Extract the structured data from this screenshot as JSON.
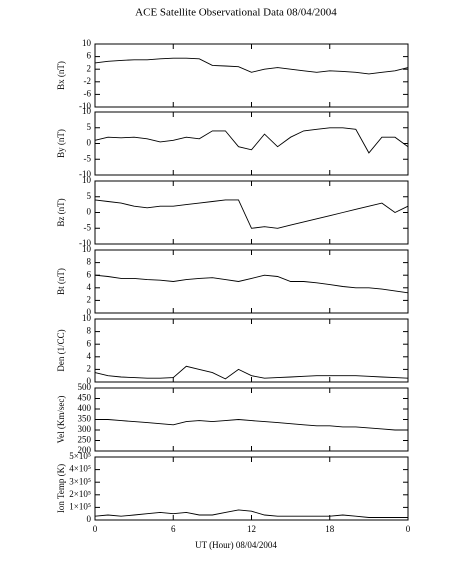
{
  "chart_data": [
    {
      "type": "line",
      "title": "ACE Satellite Observational Data   08/04/2004",
      "y_label": "Bx (nT)",
      "color": "#000000",
      "x": [
        0,
        1,
        2,
        3,
        4,
        5,
        6,
        7,
        8,
        9,
        10,
        11,
        12,
        13,
        14,
        15,
        16,
        17,
        18,
        19,
        20,
        21,
        22,
        23,
        24
      ],
      "values": [
        4,
        4.5,
        4.8,
        5,
        5,
        5.3,
        5.5,
        5.5,
        5.3,
        3.2,
        3,
        2.8,
        1,
        2,
        2.5,
        2,
        1.5,
        1,
        1.5,
        1.3,
        1,
        0.5,
        1,
        1.5,
        2.5
      ],
      "xlim": [
        0,
        24
      ],
      "ylim": [
        -10,
        10
      ],
      "yticks": [
        -10,
        -6,
        -2,
        2,
        6,
        10
      ]
    },
    {
      "type": "line",
      "y_label": "By (nT)",
      "color": "#000000",
      "x": [
        0,
        1,
        2,
        3,
        4,
        5,
        6,
        7,
        8,
        9,
        10,
        11,
        12,
        13,
        14,
        15,
        16,
        17,
        18,
        19,
        20,
        21,
        22,
        23,
        24
      ],
      "values": [
        1,
        2,
        1.8,
        2,
        1.5,
        0.5,
        1,
        2,
        1.5,
        4,
        4,
        -1,
        -2,
        3,
        -1,
        2,
        4,
        4.5,
        5,
        5,
        4.5,
        -3,
        2,
        2,
        -1
      ],
      "xlim": [
        0,
        24
      ],
      "ylim": [
        -10,
        10
      ],
      "yticks": [
        -10,
        -5,
        0,
        5,
        10
      ]
    },
    {
      "type": "line",
      "y_label": "Bz (nT)",
      "color": "#000000",
      "x": [
        0,
        1,
        2,
        3,
        4,
        5,
        6,
        7,
        8,
        9,
        10,
        11,
        12,
        13,
        14,
        15,
        16,
        17,
        18,
        19,
        20,
        21,
        22,
        23,
        24
      ],
      "values": [
        4,
        3.5,
        3,
        2,
        1.5,
        2,
        2,
        2.5,
        3,
        3.5,
        4,
        4,
        -5,
        -4.5,
        -5,
        -4,
        -3,
        -2,
        -1,
        0,
        1,
        2,
        3,
        0,
        2
      ],
      "xlim": [
        0,
        24
      ],
      "ylim": [
        -10,
        10
      ],
      "yticks": [
        -10,
        -5,
        0,
        5,
        10
      ]
    },
    {
      "type": "line",
      "y_label": "Bt (nT)",
      "color": "#000000",
      "x": [
        0,
        1,
        2,
        3,
        4,
        5,
        6,
        7,
        8,
        9,
        10,
        11,
        12,
        13,
        14,
        15,
        16,
        17,
        18,
        19,
        20,
        21,
        22,
        23,
        24
      ],
      "values": [
        6,
        5.8,
        5.5,
        5.5,
        5.3,
        5.2,
        5,
        5.3,
        5.5,
        5.6,
        5.3,
        5,
        5.5,
        6,
        5.8,
        5,
        5,
        4.8,
        4.5,
        4.2,
        4,
        4,
        3.8,
        3.5,
        3.2
      ],
      "xlim": [
        0,
        24
      ],
      "ylim": [
        0,
        10
      ],
      "yticks": [
        0,
        2,
        4,
        6,
        8,
        10
      ]
    },
    {
      "type": "line",
      "y_label": "Den (1/CC)",
      "color": "#000000",
      "x": [
        0,
        1,
        2,
        3,
        4,
        5,
        6,
        7,
        8,
        9,
        10,
        11,
        12,
        13,
        14,
        15,
        16,
        17,
        18,
        19,
        20,
        21,
        22,
        23,
        24
      ],
      "values": [
        1.5,
        1,
        0.8,
        0.7,
        0.6,
        0.6,
        0.7,
        2.5,
        2,
        1.5,
        0.5,
        2,
        1,
        0.6,
        0.7,
        0.8,
        0.9,
        1,
        1,
        1,
        1,
        0.9,
        0.8,
        0.7,
        0.6
      ],
      "xlim": [
        0,
        24
      ],
      "ylim": [
        0,
        10
      ],
      "yticks": [
        0,
        2,
        4,
        6,
        8,
        10
      ]
    },
    {
      "type": "line",
      "y_label": "Vel (Km/sec)",
      "color": "#000000",
      "x": [
        0,
        1,
        2,
        3,
        4,
        5,
        6,
        7,
        8,
        9,
        10,
        11,
        12,
        13,
        14,
        15,
        16,
        17,
        18,
        19,
        20,
        21,
        22,
        23,
        24
      ],
      "values": [
        350,
        350,
        345,
        340,
        335,
        330,
        325,
        340,
        345,
        340,
        345,
        350,
        345,
        340,
        335,
        330,
        325,
        320,
        320,
        315,
        315,
        310,
        305,
        300,
        300
      ],
      "xlim": [
        0,
        24
      ],
      "ylim": [
        200,
        500
      ],
      "yticks": [
        200,
        250,
        300,
        350,
        400,
        450,
        500
      ]
    },
    {
      "type": "line",
      "y_label": "Ion Temp (K)",
      "x_label": "UT (Hour)   08/04/2004",
      "color": "#000000",
      "x": [
        0,
        1,
        2,
        3,
        4,
        5,
        6,
        7,
        8,
        9,
        10,
        11,
        12,
        13,
        14,
        15,
        16,
        17,
        18,
        19,
        20,
        21,
        22,
        23,
        24
      ],
      "values": [
        30000,
        40000,
        30000,
        40000,
        50000,
        60000,
        50000,
        60000,
        40000,
        40000,
        60000,
        80000,
        70000,
        40000,
        30000,
        30000,
        30000,
        30000,
        30000,
        40000,
        30000,
        20000,
        20000,
        20000,
        20000
      ],
      "xlim": [
        0,
        24
      ],
      "xticks": [
        0,
        6,
        12,
        18,
        {
          "value": 24,
          "label": "0"
        }
      ],
      "ylim": [
        0,
        500000
      ],
      "yticks": [
        0,
        {
          "value": 100000,
          "label": "1×10⁵"
        },
        {
          "value": 200000,
          "label": "2×10⁵"
        },
        {
          "value": 300000,
          "label": "3×10⁵"
        },
        {
          "value": 400000,
          "label": "4×10⁵"
        },
        {
          "value": 500000,
          "label": "5×10⁵"
        }
      ]
    }
  ]
}
